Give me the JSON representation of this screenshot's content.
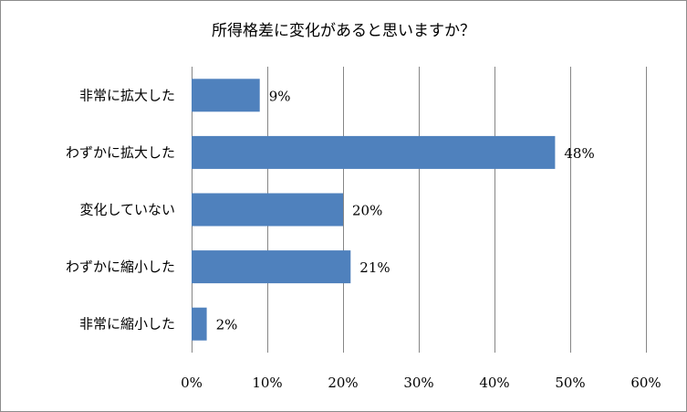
{
  "chart_data": {
    "type": "bar",
    "orientation": "horizontal",
    "title": "所得格差に変化があると思いますか？",
    "categories": [
      "非常に拡大した",
      "わずかに拡大した",
      "変化していない",
      "わずかに縮小した",
      "非常に縮小した"
    ],
    "values": [
      9,
      48,
      20,
      21,
      2
    ],
    "data_labels": [
      "9%",
      "48%",
      "20%",
      "21%",
      "2%"
    ],
    "xlim": [
      0,
      60
    ],
    "x_ticks": [
      0,
      10,
      20,
      30,
      40,
      50,
      60
    ],
    "x_tick_labels": [
      "0%",
      "10%",
      "20%",
      "30%",
      "40%",
      "50%",
      "60%"
    ],
    "xlabel": "",
    "ylabel": "",
    "grid": "vertical",
    "legend": "none",
    "bar_color": "#4f81bd",
    "gridline_color": "#868686"
  }
}
